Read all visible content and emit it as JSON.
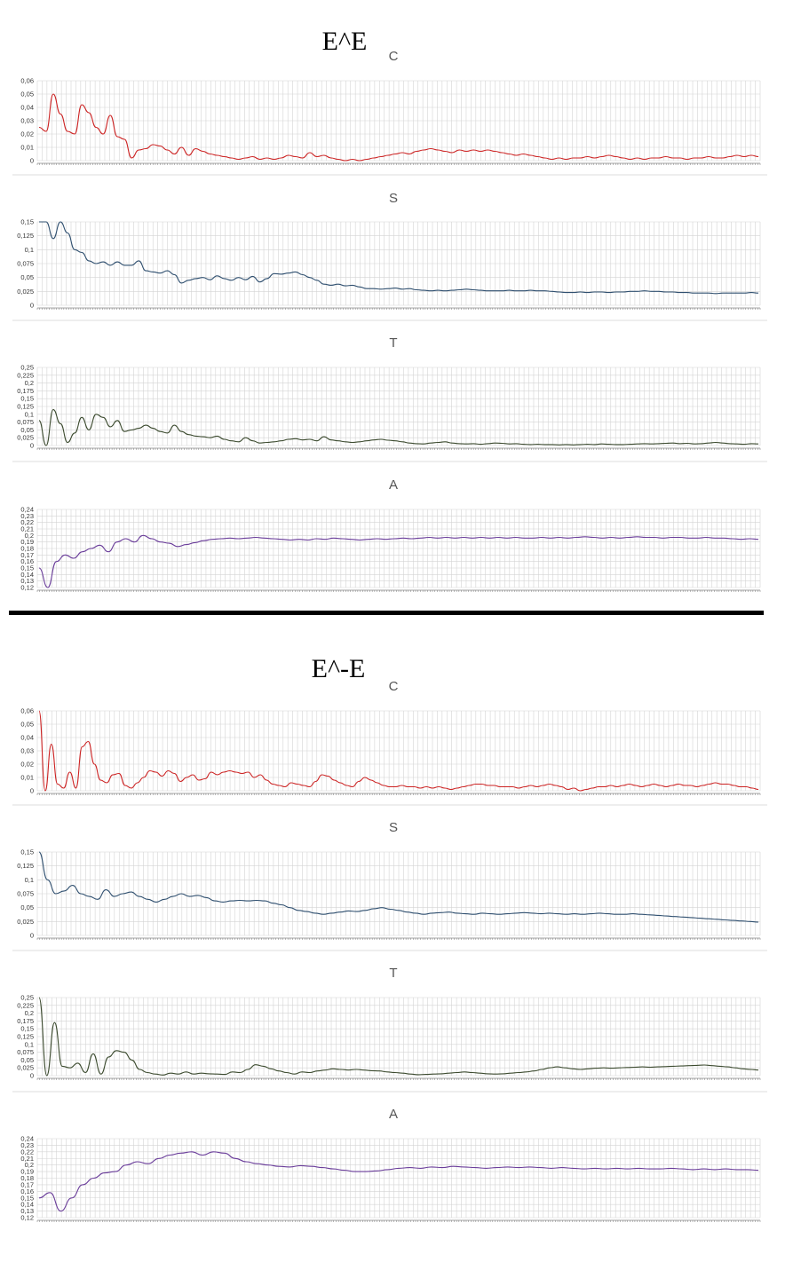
{
  "sections": [
    {
      "title": "E^E",
      "charts": [
        {
          "title": "C",
          "color": "#cc2222",
          "ticks": [
            "0",
            "0,01",
            "0,02",
            "0,03",
            "0,04",
            "0,05",
            "0,06"
          ],
          "ylim": [
            0,
            0.06
          ]
        },
        {
          "title": "S",
          "color": "#2f4f6f",
          "ticks": [
            "0",
            "0,025",
            "0,05",
            "0,075",
            "0,1",
            "0,125",
            "0,15"
          ],
          "ylim": [
            0,
            0.15
          ]
        },
        {
          "title": "T",
          "color": "#3b4a2e",
          "ticks": [
            "0",
            "0,025",
            "0,05",
            "0,075",
            "0,1",
            "0,125",
            "0,15",
            "0,175",
            "0,2",
            "0,225",
            "0,25"
          ],
          "ylim": [
            0,
            0.25
          ]
        },
        {
          "title": "A",
          "color": "#6a3d9a",
          "ticks": [
            "0,12",
            "0,13",
            "0,14",
            "0,15",
            "0,16",
            "0,17",
            "0,18",
            "0,19",
            "0,2",
            "0,21",
            "0,22",
            "0,23",
            "0,24"
          ],
          "ylim": [
            0.12,
            0.24
          ]
        }
      ]
    },
    {
      "title": "E^-E",
      "charts": [
        {
          "title": "C",
          "color": "#cc2222",
          "ticks": [
            "0",
            "0,01",
            "0,02",
            "0,03",
            "0,04",
            "0,05",
            "0,06"
          ],
          "ylim": [
            0,
            0.06
          ]
        },
        {
          "title": "S",
          "color": "#2f4f6f",
          "ticks": [
            "0",
            "0,025",
            "0,05",
            "0,075",
            "0,1",
            "0,125",
            "0,15"
          ],
          "ylim": [
            0,
            0.15
          ]
        },
        {
          "title": "T",
          "color": "#3b4a2e",
          "ticks": [
            "0",
            "0,025",
            "0,05",
            "0,075",
            "0,1",
            "0,125",
            "0,15",
            "0,175",
            "0,2",
            "0,225",
            "0,25"
          ],
          "ylim": [
            0,
            0.25
          ]
        },
        {
          "title": "A",
          "color": "#6a3d9a",
          "ticks": [
            "0,12",
            "0,13",
            "0,14",
            "0,15",
            "0,16",
            "0,17",
            "0,18",
            "0,19",
            "0,2",
            "0,21",
            "0,22",
            "0,23",
            "0,24"
          ],
          "ylim": [
            0.12,
            0.24
          ]
        }
      ]
    }
  ],
  "chart_data": [
    {
      "type": "line",
      "title": "C",
      "ylim": [
        0,
        0.06
      ],
      "series": [
        {
          "values": [
            0.025,
            0.022,
            0.05,
            0.035,
            0.022,
            0.02,
            0.042,
            0.036,
            0.025,
            0.02,
            0.034,
            0.018,
            0.016,
            0.002,
            0.008,
            0.009,
            0.012,
            0.011,
            0.008,
            0.005,
            0.01,
            0.004,
            0.009,
            0.007,
            0.005,
            0.004,
            0.003,
            0.002,
            0.001,
            0.002,
            0.003,
            0.001,
            0.002,
            0.001,
            0.002,
            0.004,
            0.003,
            0.002,
            0.006,
            0.003,
            0.004,
            0.002,
            0.001,
            0.0,
            0.001,
            0.0,
            0.001,
            0.002,
            0.003,
            0.004,
            0.005,
            0.006,
            0.005,
            0.007,
            0.008,
            0.009,
            0.008,
            0.007,
            0.006,
            0.008,
            0.007,
            0.008,
            0.007,
            0.008,
            0.007,
            0.006,
            0.005,
            0.004,
            0.005,
            0.004,
            0.003,
            0.002,
            0.001,
            0.002,
            0.001,
            0.002,
            0.002,
            0.003,
            0.002,
            0.003,
            0.004,
            0.003,
            0.002,
            0.001,
            0.002,
            0.001,
            0.002,
            0.002,
            0.003,
            0.002,
            0.002,
            0.001,
            0.002,
            0.002,
            0.003,
            0.002,
            0.002,
            0.003,
            0.004,
            0.003,
            0.004,
            0.003
          ]
        }
      ]
    },
    {
      "type": "line",
      "title": "S",
      "ylim": [
        0,
        0.15
      ],
      "series": [
        {
          "values": [
            0.15,
            0.15,
            0.12,
            0.15,
            0.13,
            0.1,
            0.095,
            0.08,
            0.075,
            0.078,
            0.072,
            0.078,
            0.072,
            0.072,
            0.08,
            0.062,
            0.06,
            0.058,
            0.062,
            0.055,
            0.04,
            0.045,
            0.048,
            0.05,
            0.046,
            0.053,
            0.048,
            0.045,
            0.05,
            0.046,
            0.052,
            0.042,
            0.048,
            0.057,
            0.056,
            0.058,
            0.06,
            0.055,
            0.05,
            0.045,
            0.038,
            0.036,
            0.038,
            0.035,
            0.036,
            0.033,
            0.03,
            0.03,
            0.029,
            0.03,
            0.031,
            0.029,
            0.03,
            0.028,
            0.027,
            0.026,
            0.027,
            0.026,
            0.027,
            0.028,
            0.029,
            0.028,
            0.027,
            0.026,
            0.026,
            0.026,
            0.027,
            0.026,
            0.026,
            0.027,
            0.026,
            0.026,
            0.025,
            0.024,
            0.023,
            0.023,
            0.024,
            0.023,
            0.024,
            0.024,
            0.023,
            0.024,
            0.024,
            0.025,
            0.025,
            0.026,
            0.025,
            0.025,
            0.024,
            0.024,
            0.023,
            0.023,
            0.022,
            0.022,
            0.022,
            0.021,
            0.022,
            0.022,
            0.022,
            0.022,
            0.023,
            0.022
          ]
        }
      ]
    },
    {
      "type": "line",
      "title": "T",
      "ylim": [
        0,
        0.25
      ],
      "series": [
        {
          "values": [
            0.08,
            0.0,
            0.115,
            0.07,
            0.01,
            0.04,
            0.09,
            0.05,
            0.1,
            0.09,
            0.06,
            0.08,
            0.045,
            0.05,
            0.055,
            0.065,
            0.055,
            0.045,
            0.04,
            0.065,
            0.045,
            0.035,
            0.03,
            0.028,
            0.025,
            0.03,
            0.02,
            0.015,
            0.012,
            0.025,
            0.015,
            0.008,
            0.01,
            0.012,
            0.015,
            0.02,
            0.022,
            0.018,
            0.02,
            0.015,
            0.028,
            0.018,
            0.015,
            0.012,
            0.01,
            0.012,
            0.015,
            0.018,
            0.02,
            0.017,
            0.015,
            0.012,
            0.008,
            0.006,
            0.005,
            0.008,
            0.01,
            0.012,
            0.008,
            0.006,
            0.005,
            0.006,
            0.004,
            0.006,
            0.008,
            0.007,
            0.005,
            0.006,
            0.004,
            0.003,
            0.004,
            0.003,
            0.003,
            0.002,
            0.003,
            0.002,
            0.003,
            0.004,
            0.003,
            0.005,
            0.004,
            0.003,
            0.003,
            0.004,
            0.005,
            0.006,
            0.005,
            0.006,
            0.007,
            0.008,
            0.006,
            0.007,
            0.005,
            0.006,
            0.008,
            0.01,
            0.008,
            0.006,
            0.005,
            0.004,
            0.006,
            0.005
          ]
        }
      ]
    },
    {
      "type": "line",
      "title": "A",
      "ylim": [
        0.12,
        0.24
      ],
      "series": [
        {
          "values": [
            0.15,
            0.12,
            0.16,
            0.17,
            0.165,
            0.175,
            0.18,
            0.185,
            0.175,
            0.19,
            0.195,
            0.19,
            0.2,
            0.195,
            0.19,
            0.188,
            0.183,
            0.186,
            0.189,
            0.192,
            0.194,
            0.195,
            0.196,
            0.195,
            0.196,
            0.197,
            0.196,
            0.195,
            0.194,
            0.193,
            0.194,
            0.193,
            0.195,
            0.194,
            0.196,
            0.195,
            0.194,
            0.193,
            0.194,
            0.195,
            0.194,
            0.195,
            0.196,
            0.195,
            0.196,
            0.197,
            0.196,
            0.197,
            0.196,
            0.197,
            0.196,
            0.197,
            0.196,
            0.197,
            0.196,
            0.197,
            0.196,
            0.196,
            0.197,
            0.196,
            0.197,
            0.196,
            0.197,
            0.198,
            0.197,
            0.196,
            0.197,
            0.196,
            0.197,
            0.198,
            0.197,
            0.197,
            0.196,
            0.197,
            0.197,
            0.196,
            0.196,
            0.197,
            0.196,
            0.196,
            0.195,
            0.194,
            0.195,
            0.194
          ]
        }
      ]
    },
    {
      "type": "line",
      "title": "C",
      "ylim": [
        0,
        0.06
      ],
      "series": [
        {
          "values": [
            0.06,
            0.0,
            0.035,
            0.005,
            0.002,
            0.014,
            0.002,
            0.033,
            0.037,
            0.02,
            0.008,
            0.006,
            0.012,
            0.013,
            0.004,
            0.002,
            0.006,
            0.01,
            0.015,
            0.014,
            0.011,
            0.015,
            0.013,
            0.007,
            0.01,
            0.012,
            0.008,
            0.009,
            0.014,
            0.012,
            0.014,
            0.015,
            0.014,
            0.013,
            0.014,
            0.01,
            0.012,
            0.008,
            0.005,
            0.004,
            0.003,
            0.006,
            0.005,
            0.004,
            0.003,
            0.007,
            0.012,
            0.011,
            0.008,
            0.006,
            0.004,
            0.003,
            0.007,
            0.01,
            0.008,
            0.006,
            0.004,
            0.003,
            0.003,
            0.004,
            0.003,
            0.003,
            0.002,
            0.003,
            0.002,
            0.003,
            0.002,
            0.001,
            0.002,
            0.003,
            0.004,
            0.005,
            0.005,
            0.004,
            0.004,
            0.003,
            0.003,
            0.003,
            0.002,
            0.003,
            0.004,
            0.003,
            0.004,
            0.005,
            0.004,
            0.003,
            0.001,
            0.002,
            0.0,
            0.001,
            0.002,
            0.003,
            0.003,
            0.004,
            0.003,
            0.004,
            0.005,
            0.004,
            0.003,
            0.004,
            0.005,
            0.004,
            0.003,
            0.004,
            0.005,
            0.004,
            0.004,
            0.003,
            0.004,
            0.005,
            0.006,
            0.005,
            0.005,
            0.004,
            0.003,
            0.003,
            0.002,
            0.001
          ]
        }
      ]
    },
    {
      "type": "line",
      "title": "S",
      "ylim": [
        0,
        0.15
      ],
      "series": [
        {
          "values": [
            0.15,
            0.1,
            0.075,
            0.08,
            0.09,
            0.075,
            0.07,
            0.065,
            0.082,
            0.07,
            0.075,
            0.078,
            0.07,
            0.065,
            0.06,
            0.065,
            0.07,
            0.075,
            0.07,
            0.072,
            0.068,
            0.062,
            0.06,
            0.062,
            0.063,
            0.062,
            0.063,
            0.062,
            0.058,
            0.055,
            0.05,
            0.045,
            0.043,
            0.04,
            0.038,
            0.04,
            0.042,
            0.044,
            0.043,
            0.045,
            0.048,
            0.05,
            0.047,
            0.045,
            0.042,
            0.04,
            0.038,
            0.04,
            0.041,
            0.042,
            0.04,
            0.039,
            0.038,
            0.04,
            0.039,
            0.038,
            0.039,
            0.04,
            0.041,
            0.04,
            0.039,
            0.04,
            0.039,
            0.038,
            0.039,
            0.038,
            0.039,
            0.04,
            0.039,
            0.038,
            0.038,
            0.039,
            0.038,
            0.037,
            0.036,
            0.035,
            0.034,
            0.033,
            0.032,
            0.031,
            0.03,
            0.029,
            0.028,
            0.027,
            0.026,
            0.025,
            0.024
          ]
        }
      ]
    },
    {
      "type": "line",
      "title": "T",
      "ylim": [
        0,
        0.25
      ],
      "series": [
        {
          "values": [
            0.25,
            0.0,
            0.17,
            0.03,
            0.025,
            0.04,
            0.01,
            0.07,
            0.005,
            0.06,
            0.08,
            0.075,
            0.05,
            0.02,
            0.01,
            0.005,
            0.002,
            0.008,
            0.005,
            0.012,
            0.005,
            0.008,
            0.006,
            0.005,
            0.004,
            0.012,
            0.01,
            0.02,
            0.035,
            0.03,
            0.022,
            0.015,
            0.01,
            0.005,
            0.012,
            0.01,
            0.015,
            0.018,
            0.022,
            0.02,
            0.018,
            0.02,
            0.018,
            0.016,
            0.015,
            0.012,
            0.01,
            0.008,
            0.005,
            0.003,
            0.004,
            0.005,
            0.006,
            0.008,
            0.01,
            0.012,
            0.01,
            0.008,
            0.006,
            0.005,
            0.006,
            0.008,
            0.01,
            0.012,
            0.015,
            0.02,
            0.025,
            0.028,
            0.025,
            0.022,
            0.02,
            0.022,
            0.024,
            0.025,
            0.024,
            0.025,
            0.026,
            0.027,
            0.028,
            0.027,
            0.028,
            0.029,
            0.03,
            0.031,
            0.032,
            0.033,
            0.034,
            0.032,
            0.03,
            0.028,
            0.025,
            0.022,
            0.02,
            0.018
          ]
        }
      ]
    },
    {
      "type": "line",
      "title": "A",
      "ylim": [
        0.12,
        0.24
      ],
      "series": [
        {
          "values": [
            0.15,
            0.158,
            0.13,
            0.15,
            0.17,
            0.18,
            0.188,
            0.19,
            0.2,
            0.205,
            0.202,
            0.21,
            0.215,
            0.218,
            0.22,
            0.215,
            0.22,
            0.218,
            0.21,
            0.205,
            0.202,
            0.2,
            0.198,
            0.197,
            0.199,
            0.198,
            0.196,
            0.194,
            0.192,
            0.19,
            0.19,
            0.191,
            0.193,
            0.195,
            0.196,
            0.195,
            0.197,
            0.196,
            0.198,
            0.197,
            0.196,
            0.195,
            0.196,
            0.197,
            0.196,
            0.197,
            0.196,
            0.195,
            0.196,
            0.195,
            0.194,
            0.195,
            0.194,
            0.195,
            0.194,
            0.195,
            0.194,
            0.194,
            0.195,
            0.194,
            0.193,
            0.194,
            0.193,
            0.194,
            0.193,
            0.193,
            0.192
          ]
        }
      ]
    }
  ]
}
